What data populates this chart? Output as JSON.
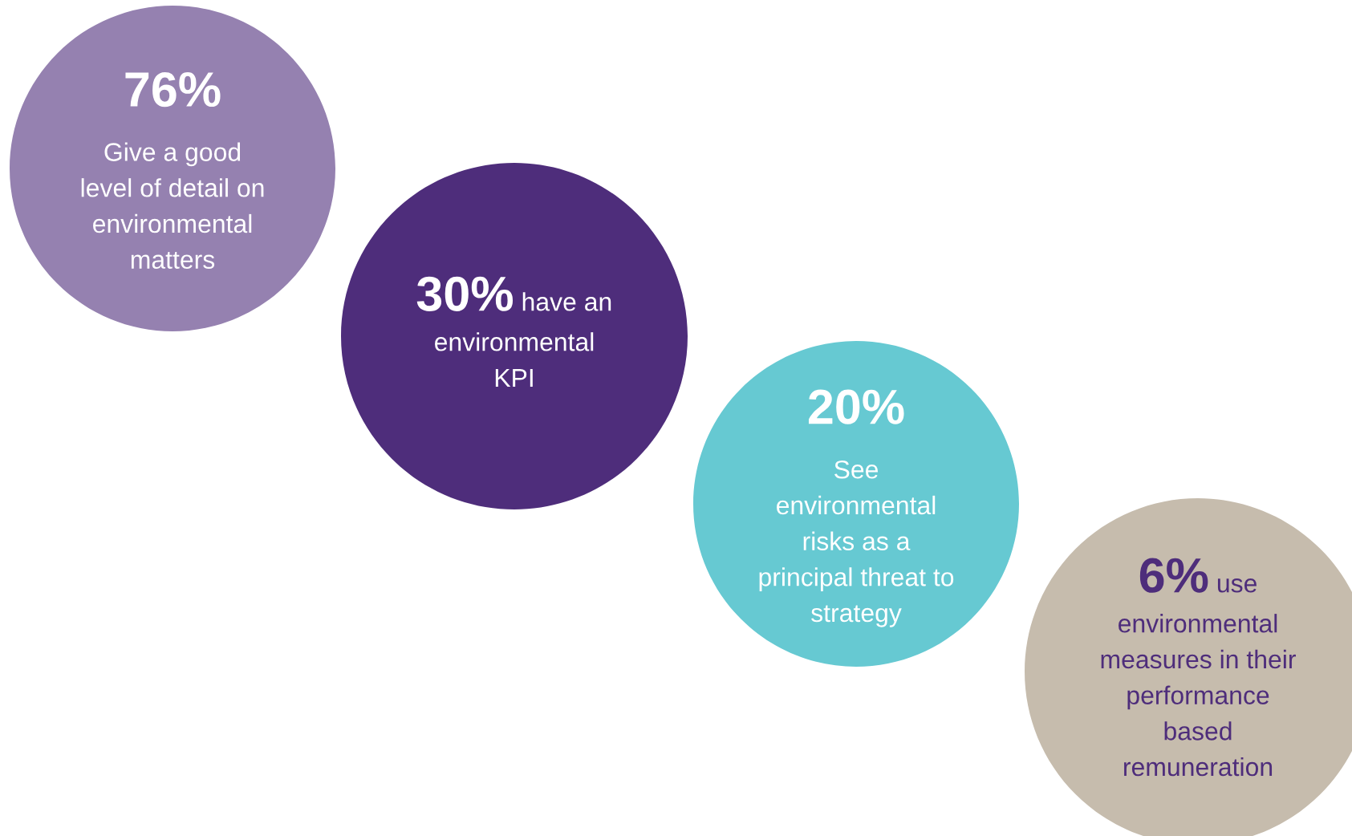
{
  "chart_data": {
    "type": "other",
    "categories": [
      "Give a good\nlevel of detail on\nenvironmental\nmatters",
      "have an\nenvironmental\nKPI",
      "See\nenvironmental\nrisks as a\nprincipal threat to\nstrategy",
      "use\nenvironmental\nmeasures in their\nperformance\nbased\nremuneration"
    ],
    "values": [
      76,
      30,
      20,
      6
    ],
    "value_labels": [
      "76%",
      "30%",
      "20%",
      "6%"
    ],
    "colors": [
      "#9581b0",
      "#4e2d7b",
      "#66c9d2",
      "#c6bcad"
    ]
  }
}
